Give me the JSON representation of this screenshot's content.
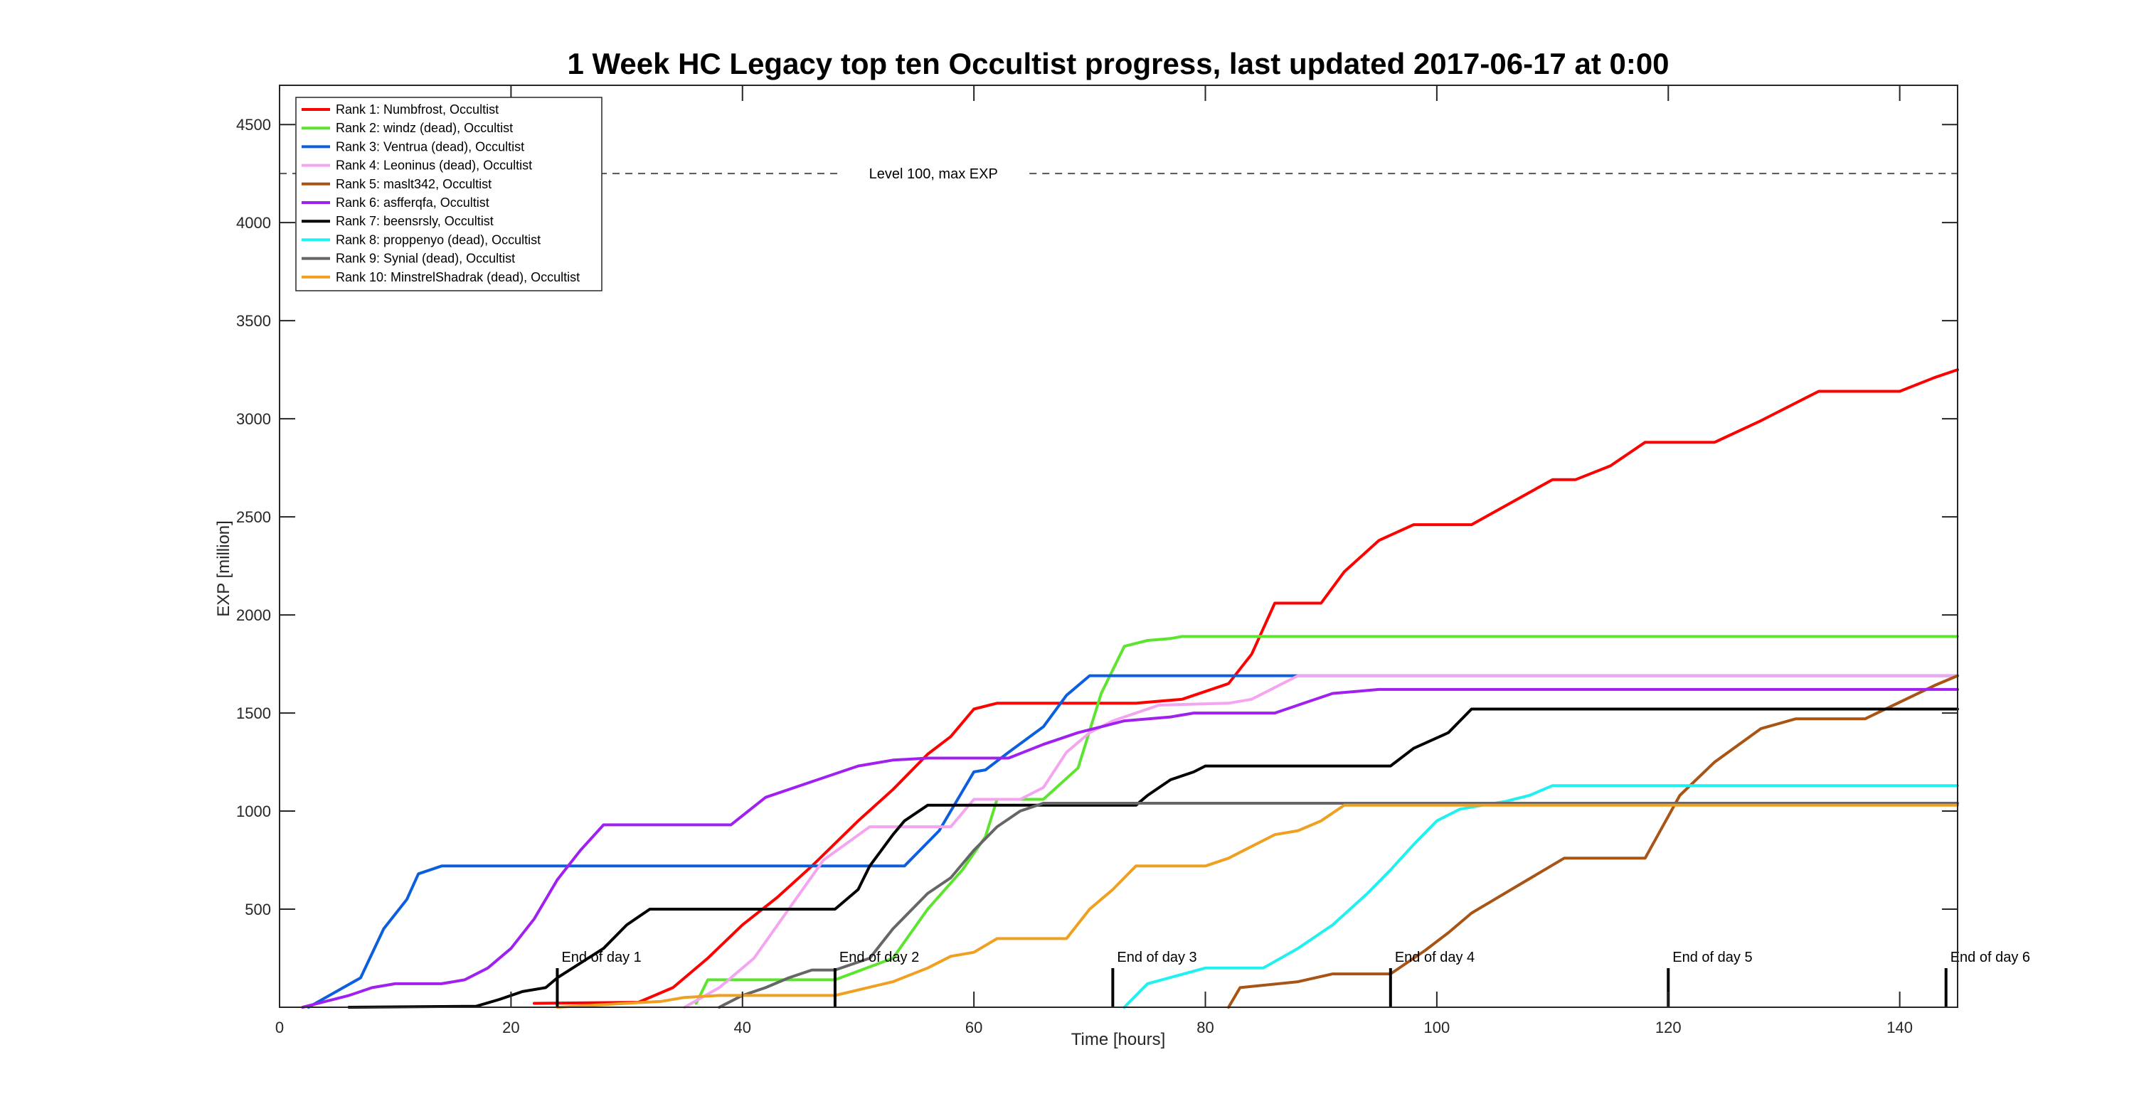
{
  "chart_data": {
    "type": "line",
    "title": "1 Week HC Legacy top ten Occultist progress, last updated 2017-06-17 at 0:00",
    "xlabel": "Time [hours]",
    "ylabel": "EXP [million]",
    "xlim": [
      0,
      145
    ],
    "ylim": [
      0,
      4700
    ],
    "xticks": [
      0,
      20,
      40,
      60,
      80,
      100,
      120,
      140
    ],
    "yticks": [
      500,
      1000,
      1500,
      2000,
      2500,
      3000,
      3500,
      4000,
      4500
    ],
    "grid": false,
    "legend_location": "top-left",
    "max_exp_line": {
      "y": 4250,
      "label": "Level 100, max EXP",
      "color": "#555555"
    },
    "day_markers": [
      {
        "x": 24,
        "label": "End of day 1"
      },
      {
        "x": 48,
        "label": "End of day 2"
      },
      {
        "x": 72,
        "label": "End of day 3"
      },
      {
        "x": 96,
        "label": "End of day 4"
      },
      {
        "x": 120,
        "label": "End of day 5"
      },
      {
        "x": 144,
        "label": "End of day 6"
      }
    ],
    "series": [
      {
        "name": "Rank 1: Numbfrost, Occultist",
        "color": "#ff0000",
        "x": [
          22,
          31,
          34,
          37,
          40,
          43,
          46,
          50,
          53,
          56,
          58,
          60,
          62,
          74,
          78,
          82,
          84,
          86,
          90,
          92,
          95,
          98,
          103,
          110,
          112,
          115,
          118,
          124,
          128,
          133,
          140,
          143,
          145
        ],
        "y": [
          20,
          25,
          100,
          250,
          420,
          560,
          720,
          950,
          1110,
          1290,
          1380,
          1520,
          1550,
          1550,
          1570,
          1650,
          1800,
          2060,
          2060,
          2220,
          2380,
          2460,
          2460,
          2690,
          2690,
          2760,
          2880,
          2880,
          2990,
          3140,
          3140,
          3210,
          3250
        ]
      },
      {
        "name": "Rank 2: windz (dead), Occultist",
        "color": "#5ce52f",
        "x": [
          36,
          37,
          48,
          53,
          56,
          59,
          61,
          62,
          66,
          69,
          71,
          73,
          75,
          77,
          78,
          145
        ],
        "y": [
          20,
          140,
          140,
          250,
          500,
          700,
          870,
          1060,
          1060,
          1220,
          1600,
          1840,
          1870,
          1880,
          1890,
          1890
        ]
      },
      {
        "name": "Rank 3: Ventrua (dead), Occultist",
        "color": "#0b5fde",
        "x": [
          2.5,
          7,
          9,
          11,
          12,
          14,
          54,
          57,
          60,
          61,
          63,
          66,
          68,
          70,
          145
        ],
        "y": [
          0,
          150,
          400,
          550,
          680,
          720,
          720,
          900,
          1200,
          1210,
          1300,
          1430,
          1590,
          1690,
          1690
        ]
      },
      {
        "name": "Rank 4: Leoninus (dead), Occultist",
        "color": "#f4a5f0",
        "x": [
          35,
          38,
          41,
          44,
          47,
          51,
          53,
          58,
          60,
          61,
          62,
          64,
          66,
          68,
          70,
          72,
          76,
          82,
          84,
          88,
          145
        ],
        "y": [
          0,
          100,
          250,
          500,
          750,
          920,
          920,
          920,
          1060,
          1060,
          1060,
          1060,
          1120,
          1300,
          1400,
          1460,
          1540,
          1550,
          1570,
          1690,
          1690
        ]
      },
      {
        "name": "Rank 5: maslt342, Occultist",
        "color": "#a85415",
        "x": [
          82,
          83,
          88,
          91,
          96,
          99,
          101,
          103,
          107,
          111,
          118,
          121,
          124,
          128,
          131,
          137,
          143,
          145
        ],
        "y": [
          0,
          100,
          130,
          170,
          170,
          290,
          380,
          480,
          620,
          760,
          760,
          1080,
          1250,
          1420,
          1470,
          1470,
          1640,
          1690
        ]
      },
      {
        "name": "Rank 6: asfferqfa, Occultist",
        "color": "#a020f0",
        "x": [
          2,
          4,
          6,
          8,
          10,
          12,
          14,
          16,
          18,
          20,
          22,
          24,
          26,
          28,
          39,
          42,
          46,
          50,
          53,
          56,
          63,
          66,
          69,
          71,
          73,
          77,
          79,
          80,
          86,
          89,
          91,
          93,
          95,
          145
        ],
        "y": [
          0,
          30,
          60,
          100,
          120,
          120,
          120,
          140,
          200,
          300,
          450,
          650,
          800,
          930,
          930,
          1070,
          1150,
          1230,
          1260,
          1270,
          1270,
          1340,
          1400,
          1430,
          1460,
          1480,
          1500,
          1500,
          1500,
          1560,
          1600,
          1610,
          1620,
          1620
        ]
      },
      {
        "name": "Rank 7: beensrsly, Occultist",
        "color": "#000000",
        "x": [
          6,
          17,
          19,
          21,
          23,
          24,
          28,
          30,
          32,
          36,
          38,
          48,
          50,
          51,
          53,
          54,
          56,
          59,
          74,
          75,
          77,
          79,
          80,
          86,
          90,
          96,
          98,
          101,
          103,
          145
        ],
        "y": [
          0,
          5,
          40,
          80,
          100,
          150,
          300,
          420,
          500,
          500,
          500,
          500,
          600,
          720,
          880,
          950,
          1030,
          1030,
          1030,
          1080,
          1160,
          1200,
          1230,
          1230,
          1230,
          1230,
          1320,
          1400,
          1520,
          1520
        ]
      },
      {
        "name": "Rank 8: proppenyo (dead), Occultist",
        "color": "#20f0f0",
        "x": [
          73,
          75,
          80,
          85,
          88,
          91,
          94,
          96,
          98,
          100,
          102,
          106,
          108,
          110,
          145
        ],
        "y": [
          0,
          120,
          200,
          200,
          300,
          420,
          580,
          700,
          830,
          950,
          1010,
          1050,
          1080,
          1130,
          1130
        ]
      },
      {
        "name": "Rank 9: Synial (dead), Occultist",
        "color": "#666666",
        "x": [
          38,
          40,
          42,
          44,
          46,
          48,
          51,
          53,
          56,
          58,
          60,
          62,
          64,
          66,
          145
        ],
        "y": [
          0,
          60,
          100,
          150,
          190,
          190,
          250,
          400,
          580,
          660,
          800,
          920,
          1000,
          1040,
          1040
        ]
      },
      {
        "name": "Rank 10: MinstrelShadrak (dead), Occultist",
        "color": "#f0a020",
        "x": [
          24,
          33,
          35,
          38,
          42,
          46,
          48,
          53,
          56,
          58,
          60,
          62,
          68,
          70,
          72,
          74,
          80,
          82,
          84,
          86,
          88,
          90,
          92,
          145
        ],
        "y": [
          0,
          30,
          50,
          60,
          60,
          60,
          60,
          130,
          200,
          260,
          280,
          350,
          350,
          500,
          600,
          720,
          720,
          760,
          820,
          880,
          900,
          950,
          1030,
          1030
        ]
      }
    ]
  }
}
